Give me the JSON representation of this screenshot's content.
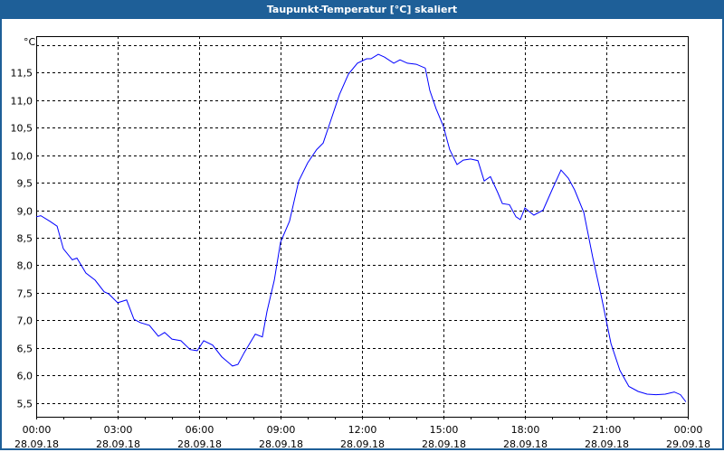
{
  "window": {
    "title": "Taupunkt-Temperatur [°C] skaliert"
  },
  "chart_data": {
    "type": "line",
    "title": "Taupunkt-Temperatur [°C] skaliert",
    "ylabel": "°C",
    "xlabel": "",
    "ylim": [
      5.25,
      12.16
    ],
    "xlim_hours": [
      0,
      24
    ],
    "grid": true,
    "y_ticks": [
      5.5,
      6.0,
      6.5,
      7.0,
      7.5,
      8.0,
      8.5,
      9.0,
      9.5,
      10.0,
      10.5,
      11.0,
      11.5,
      12.0
    ],
    "y_tick_labels": [
      "5,5",
      "6,0",
      "6,5",
      "7,0",
      "7,5",
      "8,0",
      "8,5",
      "9,0",
      "9,5",
      "10,0",
      "10,5",
      "11,0",
      "11,5",
      ""
    ],
    "x_ticks": [
      {
        "h": 0,
        "time": "00:00",
        "date": "28.09.18"
      },
      {
        "h": 3,
        "time": "03:00",
        "date": "28.09.18"
      },
      {
        "h": 6,
        "time": "06:00",
        "date": "28.09.18"
      },
      {
        "h": 9,
        "time": "09:00",
        "date": "28.09.18"
      },
      {
        "h": 12,
        "time": "12:00",
        "date": "28.09.18"
      },
      {
        "h": 15,
        "time": "15:00",
        "date": "28.09.18"
      },
      {
        "h": 18,
        "time": "18:00",
        "date": "28.09.18"
      },
      {
        "h": 21,
        "time": "21:00",
        "date": "28.09.18"
      },
      {
        "h": 24,
        "time": "00:00",
        "date": "29.09.18"
      }
    ],
    "series": [
      {
        "name": "Taupunkt-Temperatur",
        "color": "#0000ff",
        "x_hours": [
          0,
          0.17,
          0.5,
          0.77,
          1,
          1.33,
          1.5,
          1.83,
          2.17,
          2.5,
          2.67,
          3,
          3.33,
          3.6,
          3.83,
          4.17,
          4.5,
          4.73,
          5,
          5.33,
          5.67,
          5.93,
          6.17,
          6.5,
          6.83,
          7.23,
          7.43,
          7.67,
          8.07,
          8.33,
          8.5,
          8.77,
          9,
          9.33,
          9.67,
          10,
          10.33,
          10.57,
          10.83,
          11.17,
          11.5,
          11.83,
          12.17,
          12.33,
          12.6,
          12.83,
          13.17,
          13.4,
          13.67,
          14,
          14.33,
          14.5,
          14.73,
          15,
          15.23,
          15.5,
          15.73,
          16,
          16.27,
          16.5,
          16.73,
          17,
          17.17,
          17.43,
          17.67,
          17.83,
          18,
          18.33,
          18.67,
          19,
          19.33,
          19.6,
          19.83,
          20.17,
          20.5,
          20.83,
          21.17,
          21.5,
          21.83,
          22.17,
          22.5,
          22.83,
          23.17,
          23.5,
          23.73,
          23.93
        ],
        "values": [
          8.88,
          8.9,
          8.8,
          8.71,
          8.3,
          8.1,
          8.13,
          7.86,
          7.73,
          7.52,
          7.48,
          7.32,
          7.37,
          7.02,
          6.96,
          6.91,
          6.71,
          6.78,
          6.66,
          6.63,
          6.47,
          6.45,
          6.63,
          6.55,
          6.34,
          6.17,
          6.2,
          6.42,
          6.75,
          6.7,
          7.16,
          7.73,
          8.42,
          8.8,
          9.53,
          9.86,
          10.1,
          10.22,
          10.6,
          11.1,
          11.47,
          11.67,
          11.75,
          11.75,
          11.83,
          11.78,
          11.67,
          11.73,
          11.67,
          11.65,
          11.58,
          11.17,
          10.84,
          10.52,
          10.1,
          9.83,
          9.91,
          9.93,
          9.9,
          9.53,
          9.61,
          9.32,
          9.12,
          9.1,
          8.88,
          8.83,
          9.04,
          8.91,
          9.0,
          9.37,
          9.73,
          9.58,
          9.37,
          8.96,
          8.14,
          7.4,
          6.58,
          6.09,
          5.8,
          5.71,
          5.66,
          5.65,
          5.66,
          5.7,
          5.65,
          5.52
        ]
      }
    ]
  }
}
